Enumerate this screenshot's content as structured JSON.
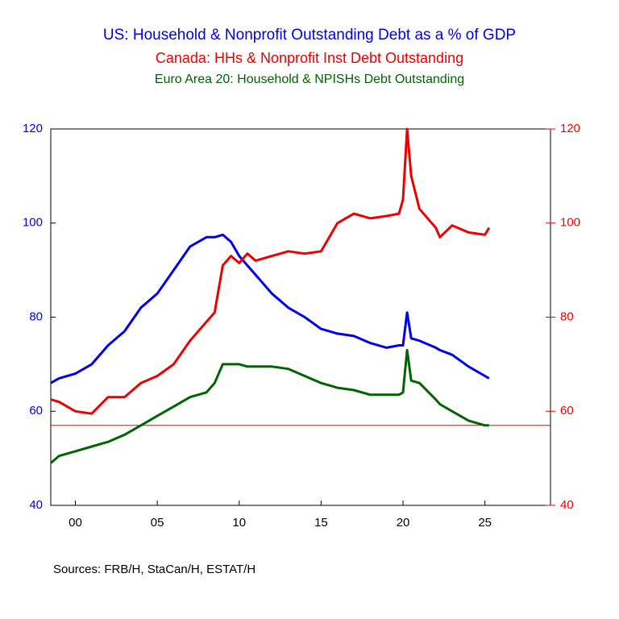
{
  "chart_data": {
    "type": "line",
    "title": "US: Household & Nonprofit Outstanding Debt as a % of GDP",
    "subtitle": "Canada: HHs & Nonprofit Inst Debt Outstanding",
    "subtitle2": "Euro Area 20: Household & NPISHs Debt Outstanding",
    "source": "Sources:  FRB/H, StaCan/H, ESTAT/H",
    "x": [
      1998.5,
      1999,
      2000,
      2001,
      2002,
      2003,
      2004,
      2005,
      2006,
      2007,
      2008,
      2008.5,
      2009,
      2009.5,
      2010,
      2010.5,
      2011,
      2012,
      2013,
      2014,
      2015,
      2016,
      2017,
      2018,
      2019,
      2019.75,
      2020,
      2020.25,
      2020.5,
      2021,
      2022,
      2022.25,
      2023,
      2024,
      2025,
      2025.25
    ],
    "series": [
      {
        "name": "US",
        "color": "#0000ee",
        "axis": "y",
        "values": [
          66,
          67,
          68,
          70,
          74,
          77,
          82,
          85,
          90,
          95,
          97,
          97,
          97.5,
          96,
          93,
          91,
          89,
          85,
          82,
          80,
          77.5,
          76.5,
          76,
          74.5,
          73.5,
          74,
          74,
          81,
          75.5,
          75,
          73.5,
          73,
          72,
          69.5,
          67.5,
          67
        ]
      },
      {
        "name": "Canada",
        "color": "#ee0000",
        "axis": "y2",
        "values": [
          62.5,
          62,
          60,
          59.5,
          63,
          63,
          66,
          67.5,
          70,
          75,
          79,
          81,
          91,
          93,
          91.5,
          93.5,
          92,
          93,
          94,
          93.5,
          94,
          100,
          102,
          101,
          101.5,
          102,
          105,
          120,
          110,
          103,
          99,
          97,
          99.5,
          98,
          97.5,
          99
        ]
      },
      {
        "name": "Euro Area 20",
        "color": "#006400",
        "axis": "y",
        "values": [
          49,
          50.5,
          51.5,
          52.5,
          53.5,
          55,
          57,
          59,
          61,
          63,
          64,
          66,
          70,
          70,
          70,
          69.5,
          69.5,
          69.5,
          69,
          67.5,
          66,
          65,
          64.5,
          63.5,
          63.5,
          63.5,
          64,
          73,
          66.5,
          66,
          62.5,
          61.5,
          60,
          58,
          57,
          57
        ]
      }
    ],
    "xlim": [
      1998.5,
      2029
    ],
    "xticks": [
      {
        "value": 2000,
        "label": "00"
      },
      {
        "value": 2005,
        "label": "05"
      },
      {
        "value": 2010,
        "label": "10"
      },
      {
        "value": 2015,
        "label": "15"
      },
      {
        "value": 2020,
        "label": "20"
      },
      {
        "value": 2025,
        "label": "25"
      }
    ],
    "ylim": [
      40,
      120
    ],
    "yticks": [
      40,
      60,
      80,
      100,
      120
    ],
    "y2lim": [
      40,
      120
    ],
    "y2ticks": [
      40,
      60,
      80,
      100,
      120
    ],
    "reference_line": {
      "value": 57,
      "color": "#ee0000"
    },
    "grid": false
  }
}
